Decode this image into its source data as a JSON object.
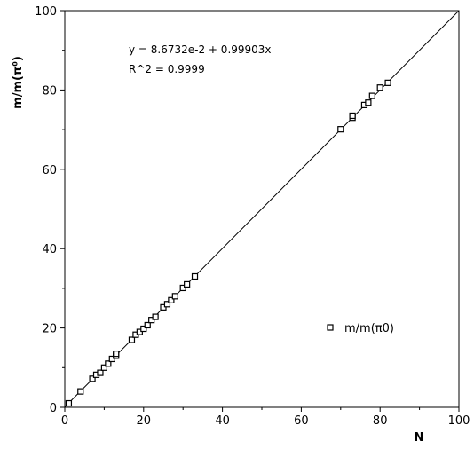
{
  "chart_data": {
    "type": "scatter",
    "xlabel": "N",
    "ylabel": "m/m(π⁰)",
    "xlim": [
      0,
      100
    ],
    "ylim": [
      0,
      100
    ],
    "xticks": [
      "0",
      "20",
      "40",
      "60",
      "80",
      "100"
    ],
    "yticks": [
      "0",
      "20",
      "40",
      "60",
      "80",
      "100"
    ],
    "grid": false,
    "legend_position": "lower-right",
    "legend": [
      "m/m(π0)"
    ],
    "annotations": [
      "y = 8.6732e-2 + 0.99903x",
      "R^2 = 0.9999"
    ],
    "fit_line": {
      "intercept": 0.086732,
      "slope": 0.99903
    },
    "series": [
      {
        "name": "m/m(π0)",
        "marker": "square",
        "points": [
          [
            1,
            1
          ],
          [
            4,
            4
          ],
          [
            7,
            7.2
          ],
          [
            8,
            8.2
          ],
          [
            9,
            8.7
          ],
          [
            10,
            10
          ],
          [
            11,
            11
          ],
          [
            12,
            12.2
          ],
          [
            13,
            13
          ],
          [
            13,
            13.5
          ],
          [
            17,
            17
          ],
          [
            18,
            18.3
          ],
          [
            19,
            19
          ],
          [
            20,
            19.8
          ],
          [
            21,
            20.7
          ],
          [
            22,
            22
          ],
          [
            23,
            22.8
          ],
          [
            25,
            25.2
          ],
          [
            26,
            26
          ],
          [
            27,
            27
          ],
          [
            28,
            28
          ],
          [
            30,
            30.1
          ],
          [
            31,
            31
          ],
          [
            33,
            33
          ],
          [
            70,
            70.1
          ],
          [
            73,
            73
          ],
          [
            73,
            73.5
          ],
          [
            76,
            76.2
          ],
          [
            77,
            76.8
          ],
          [
            78,
            78.5
          ],
          [
            80,
            80.6
          ],
          [
            82,
            81.8
          ]
        ]
      }
    ]
  }
}
